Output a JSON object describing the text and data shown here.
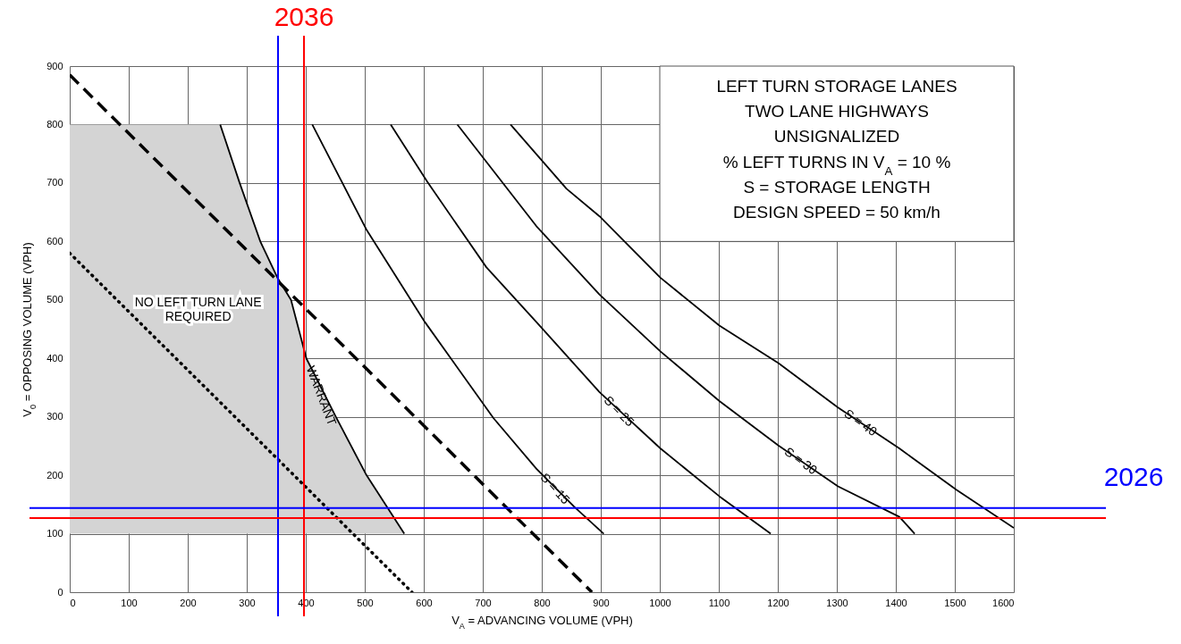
{
  "chart_data": {
    "type": "line",
    "xlabel": "V$_{A}$ = ADVANCING VOLUME (VPH)",
    "ylabel": "V$_{0}$ = OPPOSING VOLUME (VPH)",
    "xlim": [
      0,
      1600
    ],
    "ylim": [
      0,
      900
    ],
    "xticks": [
      0,
      100,
      200,
      300,
      400,
      500,
      600,
      700,
      800,
      900,
      1000,
      1100,
      1200,
      1300,
      1400,
      1500,
      1600
    ],
    "yticks": [
      0,
      100,
      200,
      300,
      400,
      500,
      600,
      700,
      800,
      900
    ],
    "grid": true,
    "series": [
      {
        "name": "WARRANT",
        "color": "#000000",
        "x": [
          255,
          288,
          323,
          352,
          375,
          401,
          451,
          503,
          567
        ],
        "values": [
          800,
          700,
          600,
          538,
          500,
          400,
          300,
          200,
          100
        ]
      },
      {
        "name": "S = 15",
        "color": "#000000",
        "x": [
          411,
          503,
          602,
          718,
          791,
          855,
          905
        ],
        "values": [
          800,
          620,
          462,
          298,
          211,
          146,
          100
        ]
      },
      {
        "name": "S = 25",
        "color": "#000000",
        "x": [
          544,
          606,
          706,
          791,
          898,
          1001,
          1101,
          1188
        ],
        "values": [
          800,
          702,
          556,
          462,
          342,
          246,
          164,
          100
        ]
      },
      {
        "name": "S = 30",
        "color": "#000000",
        "x": [
          657,
          791,
          898,
          1001,
          1101,
          1201,
          1302,
          1406,
          1432
        ],
        "values": [
          800,
          626,
          509,
          412,
          327,
          251,
          181,
          129,
          100
        ]
      },
      {
        "name": "S = 40",
        "color": "#000000",
        "x": [
          747,
          842,
          898,
          1001,
          1101,
          1201,
          1302,
          1406,
          1503,
          1600
        ],
        "values": [
          800,
          690,
          643,
          538,
          456,
          392,
          316,
          246,
          175,
          110
        ]
      },
      {
        "color": "#000000",
        "line_style": "dashed",
        "x": [
          0,
          885
        ],
        "values": [
          885,
          0
        ]
      },
      {
        "color": "#000000",
        "line_style": "dotted",
        "x": [
          0,
          580
        ],
        "values": [
          580,
          0
        ]
      }
    ],
    "ref_lines": [
      {
        "axis": "x",
        "value": 353,
        "color": "#0000ff"
      },
      {
        "axis": "x",
        "value": 397,
        "color": "#ff0000"
      },
      {
        "axis": "y",
        "value": 144,
        "color": "#0000ff"
      },
      {
        "axis": "y",
        "value": 127,
        "color": "#ff0000"
      }
    ],
    "title": "LEFT TURN STORAGE LANES",
    "subtitle": "TWO LANE HIGHWAYS\nUNSIGNALIZED\n% LEFT TURNS IN V$_{A}$ = 10 %\nS = STORAGE LENGTH\nDESIGN SPEED = 50 km/h",
    "annotations": [
      "NO LEFT TURN LANE\nREQUIRED",
      "2036",
      "2026"
    ]
  }
}
